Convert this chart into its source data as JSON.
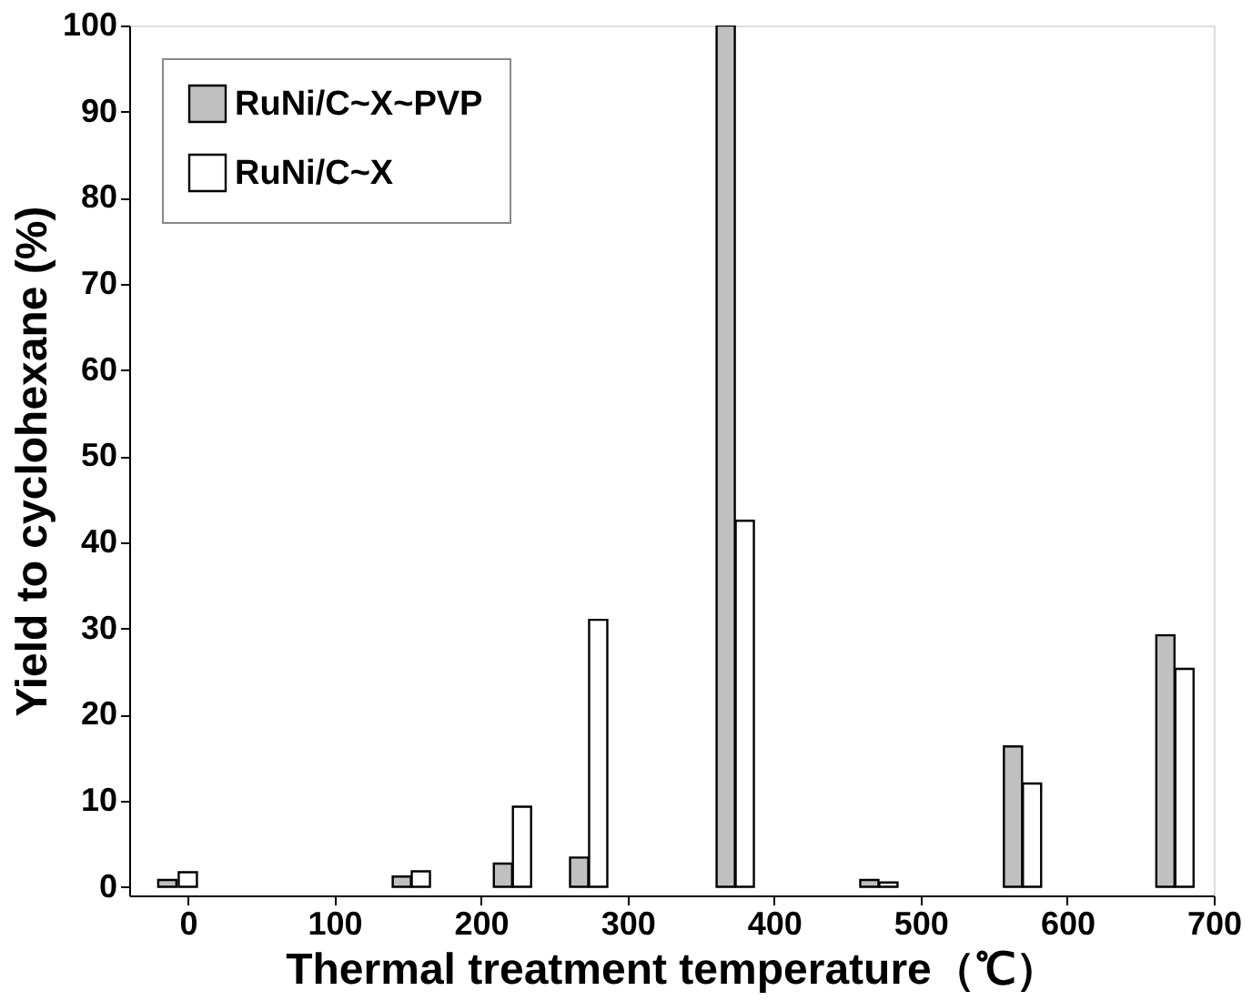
{
  "chart_data": {
    "type": "bar",
    "xlabel": "Thermal treatment temperature（℃）",
    "ylabel": "Yield to cyclohexane (%)",
    "series": [
      {
        "name": "RuNi/C~X~PVP",
        "color": "#c0c0c0",
        "x": [
          -14,
          146,
          215,
          267,
          367,
          465,
          563,
          667
        ],
        "values": [
          0.8,
          1.2,
          2.7,
          3.4,
          100,
          0.8,
          16.3,
          29.2
        ]
      },
      {
        "name": "RuNi/C~X",
        "color": "#ffffff",
        "x": [
          0,
          159,
          228,
          280,
          380,
          478,
          576,
          680
        ],
        "values": [
          1.7,
          1.8,
          9.3,
          31,
          42.5,
          0.5,
          12,
          25.3
        ]
      }
    ],
    "xlim": [
      -40,
      700
    ],
    "xticks": [
      0,
      100,
      200,
      300,
      400,
      500,
      600,
      700
    ],
    "ylim": [
      -1,
      100
    ],
    "yticks": [
      0,
      10,
      20,
      30,
      40,
      50,
      60,
      70,
      80,
      90,
      100
    ],
    "grid": false,
    "legend": "top left"
  }
}
